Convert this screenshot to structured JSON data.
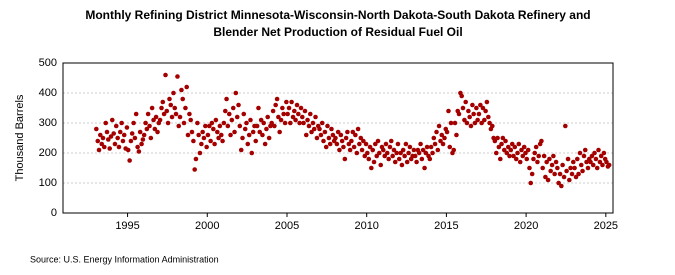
{
  "chart_data": {
    "type": "scatter",
    "title": [
      "Monthly Refining District Minnesota-Wisconsin-North Dakota-South Dakota Refinery and",
      "Blender Net Production of Residual Fuel Oil"
    ],
    "y_label": "Thousand Barrels",
    "source": "Source: U.S. Energy Information Administration",
    "color": "#a40000",
    "grid": true,
    "xlim": [
      1990.95,
      2025.45
    ],
    "xticks": [
      1995,
      2000,
      2005,
      2010,
      2015,
      2020,
      2025
    ],
    "ylim": [
      0,
      500
    ],
    "yticks": [
      0,
      100,
      200,
      300,
      400,
      500
    ],
    "x": [
      1993.04,
      1993.13,
      1993.21,
      1993.29,
      1993.38,
      1993.46,
      1993.54,
      1993.63,
      1993.71,
      1993.79,
      1993.88,
      1993.96,
      1994.04,
      1994.13,
      1994.21,
      1994.29,
      1994.38,
      1994.46,
      1994.54,
      1994.63,
      1994.71,
      1994.79,
      1994.88,
      1994.96,
      1995.04,
      1995.13,
      1995.21,
      1995.29,
      1995.38,
      1995.46,
      1995.54,
      1995.63,
      1995.71,
      1995.79,
      1995.88,
      1995.96,
      1996.04,
      1996.13,
      1996.21,
      1996.29,
      1996.38,
      1996.46,
      1996.54,
      1996.63,
      1996.71,
      1996.79,
      1996.88,
      1996.96,
      1997.04,
      1997.13,
      1997.21,
      1997.29,
      1997.38,
      1997.46,
      1997.54,
      1997.63,
      1997.71,
      1997.79,
      1997.88,
      1997.96,
      1998.04,
      1998.13,
      1998.21,
      1998.29,
      1998.38,
      1998.46,
      1998.54,
      1998.63,
      1998.71,
      1998.79,
      1998.88,
      1998.96,
      1999.04,
      1999.13,
      1999.21,
      1999.29,
      1999.38,
      1999.46,
      1999.54,
      1999.63,
      1999.71,
      1999.79,
      1999.88,
      1999.96,
      2000.04,
      2000.13,
      2000.21,
      2000.29,
      2000.38,
      2000.46,
      2000.54,
      2000.63,
      2000.71,
      2000.79,
      2000.88,
      2000.96,
      2001.04,
      2001.13,
      2001.21,
      2001.29,
      2001.38,
      2001.46,
      2001.54,
      2001.63,
      2001.71,
      2001.79,
      2001.88,
      2001.96,
      2002.04,
      2002.13,
      2002.21,
      2002.29,
      2002.38,
      2002.46,
      2002.54,
      2002.63,
      2002.71,
      2002.79,
      2002.88,
      2002.96,
      2003.04,
      2003.13,
      2003.21,
      2003.29,
      2003.38,
      2003.46,
      2003.54,
      2003.63,
      2003.71,
      2003.79,
      2003.88,
      2003.96,
      2004.04,
      2004.13,
      2004.21,
      2004.29,
      2004.38,
      2004.46,
      2004.54,
      2004.63,
      2004.71,
      2004.79,
      2004.88,
      2004.96,
      2005.04,
      2005.13,
      2005.21,
      2005.29,
      2005.38,
      2005.46,
      2005.54,
      2005.63,
      2005.71,
      2005.79,
      2005.88,
      2005.96,
      2006.04,
      2006.13,
      2006.21,
      2006.29,
      2006.38,
      2006.46,
      2006.54,
      2006.63,
      2006.71,
      2006.79,
      2006.88,
      2006.96,
      2007.04,
      2007.13,
      2007.21,
      2007.29,
      2007.38,
      2007.46,
      2007.54,
      2007.63,
      2007.71,
      2007.79,
      2007.88,
      2007.96,
      2008.04,
      2008.13,
      2008.21,
      2008.29,
      2008.38,
      2008.46,
      2008.54,
      2008.63,
      2008.71,
      2008.79,
      2008.88,
      2008.96,
      2009.04,
      2009.13,
      2009.21,
      2009.29,
      2009.38,
      2009.46,
      2009.54,
      2009.63,
      2009.71,
      2009.79,
      2009.88,
      2009.96,
      2010.04,
      2010.13,
      2010.21,
      2010.29,
      2010.38,
      2010.46,
      2010.54,
      2010.63,
      2010.71,
      2010.79,
      2010.88,
      2010.96,
      2011.04,
      2011.13,
      2011.21,
      2011.29,
      2011.38,
      2011.46,
      2011.54,
      2011.63,
      2011.71,
      2011.79,
      2011.88,
      2011.96,
      2012.04,
      2012.13,
      2012.21,
      2012.29,
      2012.38,
      2012.46,
      2012.54,
      2012.63,
      2012.71,
      2012.79,
      2012.88,
      2012.96,
      2013.04,
      2013.13,
      2013.21,
      2013.29,
      2013.38,
      2013.46,
      2013.54,
      2013.63,
      2013.71,
      2013.79,
      2013.88,
      2013.96,
      2014.04,
      2014.13,
      2014.21,
      2014.29,
      2014.38,
      2014.46,
      2014.54,
      2014.63,
      2014.71,
      2014.79,
      2014.88,
      2014.96,
      2015.04,
      2015.13,
      2015.21,
      2015.29,
      2015.38,
      2015.46,
      2015.54,
      2015.63,
      2015.71,
      2015.79,
      2015.88,
      2015.96,
      2016.04,
      2016.13,
      2016.21,
      2016.29,
      2016.38,
      2016.46,
      2016.54,
      2016.63,
      2016.71,
      2016.79,
      2016.88,
      2016.96,
      2017.04,
      2017.13,
      2017.21,
      2017.29,
      2017.38,
      2017.46,
      2017.54,
      2017.63,
      2017.71,
      2017.79,
      2017.88,
      2017.96,
      2018.04,
      2018.13,
      2018.21,
      2018.29,
      2018.38,
      2018.46,
      2018.54,
      2018.63,
      2018.71,
      2018.79,
      2018.88,
      2018.96,
      2019.04,
      2019.13,
      2019.21,
      2019.29,
      2019.38,
      2019.46,
      2019.54,
      2019.63,
      2019.71,
      2019.79,
      2019.88,
      2019.96,
      2020.04,
      2020.13,
      2020.21,
      2020.29,
      2020.38,
      2020.46,
      2020.54,
      2020.63,
      2020.71,
      2020.79,
      2020.88,
      2020.96,
      2021.04,
      2021.13,
      2021.21,
      2021.29,
      2021.38,
      2021.46,
      2021.54,
      2021.63,
      2021.71,
      2021.79,
      2021.88,
      2021.96,
      2022.04,
      2022.13,
      2022.21,
      2022.29,
      2022.38,
      2022.46,
      2022.54,
      2022.63,
      2022.71,
      2022.79,
      2022.88,
      2022.96,
      2023.04,
      2023.13,
      2023.21,
      2023.29,
      2023.38,
      2023.46,
      2023.54,
      2023.63,
      2023.71,
      2023.79,
      2023.88,
      2023.96,
      2024.04,
      2024.13,
      2024.21,
      2024.29,
      2024.38,
      2024.46,
      2024.54,
      2024.63,
      2024.71,
      2024.79,
      2024.88,
      2024.96,
      2025.04,
      2025.13,
      2025.21
    ],
    "values": [
      280,
      240,
      210,
      260,
      230,
      250,
      220,
      300,
      270,
      245,
      215,
      255,
      310,
      265,
      230,
      290,
      250,
      220,
      270,
      300,
      240,
      260,
      215,
      285,
      210,
      175,
      240,
      265,
      300,
      250,
      330,
      220,
      205,
      270,
      230,
      245,
      260,
      300,
      280,
      330,
      290,
      250,
      350,
      310,
      280,
      320,
      270,
      300,
      310,
      350,
      370,
      330,
      460,
      340,
      300,
      380,
      360,
      320,
      400,
      350,
      330,
      455,
      290,
      320,
      410,
      380,
      300,
      350,
      420,
      260,
      330,
      310,
      270,
      240,
      145,
      180,
      300,
      260,
      200,
      230,
      270,
      250,
      290,
      220,
      260,
      290,
      240,
      300,
      280,
      230,
      310,
      270,
      250,
      290,
      260,
      240,
      300,
      340,
      380,
      290,
      330,
      260,
      310,
      350,
      270,
      400,
      320,
      360,
      290,
      210,
      250,
      330,
      280,
      300,
      230,
      260,
      310,
      200,
      270,
      290,
      240,
      290,
      350,
      270,
      310,
      260,
      300,
      230,
      280,
      320,
      250,
      290,
      300,
      340,
      290,
      360,
      380,
      320,
      270,
      310,
      350,
      330,
      300,
      370,
      330,
      350,
      300,
      370,
      320,
      340,
      310,
      360,
      330,
      300,
      350,
      320,
      300,
      340,
      260,
      310,
      290,
      330,
      270,
      300,
      280,
      320,
      250,
      290,
      280,
      260,
      300,
      240,
      270,
      220,
      290,
      250,
      230,
      280,
      260,
      240,
      250,
      230,
      270,
      210,
      260,
      240,
      220,
      180,
      250,
      270,
      230,
      210,
      240,
      270,
      220,
      260,
      200,
      280,
      230,
      250,
      210,
      240,
      190,
      230,
      200,
      180,
      220,
      150,
      210,
      170,
      230,
      190,
      240,
      200,
      160,
      220,
      210,
      190,
      230,
      200,
      180,
      220,
      240,
      190,
      210,
      170,
      200,
      230,
      180,
      200,
      160,
      210,
      190,
      230,
      170,
      200,
      220,
      180,
      190,
      210,
      190,
      170,
      210,
      200,
      230,
      180,
      210,
      150,
      200,
      220,
      190,
      180,
      220,
      200,
      250,
      230,
      270,
      210,
      290,
      240,
      260,
      230,
      250,
      280,
      270,
      340,
      220,
      300,
      200,
      210,
      300,
      260,
      340,
      330,
      400,
      390,
      350,
      310,
      370,
      300,
      340,
      320,
      290,
      360,
      330,
      300,
      350,
      310,
      330,
      360,
      300,
      350,
      310,
      340,
      370,
      320,
      300,
      280,
      290,
      250,
      240,
      200,
      250,
      220,
      180,
      230,
      250,
      210,
      240,
      200,
      220,
      190,
      210,
      230,
      190,
      220,
      180,
      200,
      230,
      170,
      210,
      190,
      220,
      200,
      180,
      210,
      150,
      100,
      130,
      180,
      200,
      220,
      170,
      190,
      230,
      240,
      150,
      190,
      120,
      170,
      110,
      180,
      140,
      160,
      190,
      130,
      170,
      150,
      100,
      130,
      90,
      160,
      120,
      290,
      140,
      180,
      110,
      150,
      130,
      170,
      150,
      120,
      180,
      130,
      200,
      160,
      140,
      190,
      210,
      170,
      150,
      180,
      170,
      190,
      160,
      200,
      180,
      150,
      210,
      170,
      190,
      160,
      200,
      180,
      170,
      155,
      160
    ]
  }
}
